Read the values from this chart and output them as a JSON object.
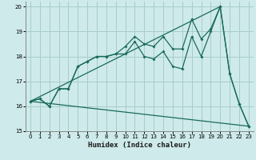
{
  "xlabel": "Humidex (Indice chaleur)",
  "bg_color": "#ceeaea",
  "grid_color": "#a8cccc",
  "line_color": "#1a6b5a",
  "xlim": [
    -0.5,
    23.5
  ],
  "ylim": [
    15,
    20.2
  ],
  "yticks": [
    15,
    16,
    17,
    18,
    19,
    20
  ],
  "xticks": [
    0,
    1,
    2,
    3,
    4,
    5,
    6,
    7,
    8,
    9,
    10,
    11,
    12,
    13,
    14,
    15,
    16,
    17,
    18,
    19,
    20,
    21,
    22,
    23
  ],
  "series1_x": [
    0,
    1,
    2,
    3,
    4,
    5,
    6,
    7,
    8,
    9,
    10,
    11,
    12,
    13,
    14,
    15,
    16,
    17,
    18,
    19,
    20,
    21,
    22,
    23
  ],
  "series1_y": [
    16.2,
    16.3,
    16.0,
    16.7,
    16.7,
    17.6,
    17.8,
    18.0,
    18.0,
    18.1,
    18.4,
    18.8,
    18.5,
    18.4,
    18.8,
    18.3,
    18.3,
    19.5,
    18.7,
    19.1,
    20.0,
    17.3,
    16.1,
    15.2
  ],
  "series2_x": [
    0,
    1,
    2,
    3,
    4,
    5,
    6,
    7,
    8,
    9,
    10,
    11,
    12,
    13,
    14,
    15,
    16,
    17,
    18,
    19,
    20,
    21,
    22,
    23
  ],
  "series2_y": [
    16.2,
    16.3,
    16.0,
    16.7,
    16.7,
    17.6,
    17.8,
    18.0,
    18.0,
    18.1,
    18.1,
    18.6,
    18.0,
    17.9,
    18.2,
    17.6,
    17.5,
    18.8,
    18.0,
    19.0,
    20.0,
    17.3,
    16.1,
    15.2
  ],
  "series3_x": [
    0,
    23
  ],
  "series3_y": [
    16.2,
    15.2
  ],
  "series4_x": [
    0,
    20
  ],
  "series4_y": [
    16.2,
    20.0
  ]
}
